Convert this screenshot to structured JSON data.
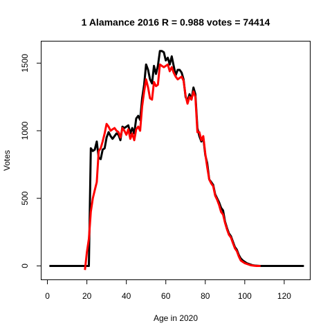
{
  "chart_data": {
    "type": "line",
    "title": "1 Alamance 2016 R = 0.988 votes = 74414",
    "xlabel": "Age in 2020",
    "ylabel": "Votes",
    "xlim": [
      -3,
      133
    ],
    "ylim": [
      -100,
      1660
    ],
    "x_ticks": [
      0,
      20,
      40,
      60,
      80,
      100,
      120
    ],
    "y_ticks": [
      0,
      500,
      1000,
      1500
    ],
    "grid": false,
    "legend": "none",
    "series": [
      {
        "color": "#000000",
        "points": [
          [
            1,
            0
          ],
          [
            19,
            0
          ],
          [
            20,
            0
          ],
          [
            21,
            0
          ],
          [
            22,
            870
          ],
          [
            23,
            850
          ],
          [
            24,
            860
          ],
          [
            25,
            920
          ],
          [
            26,
            800
          ],
          [
            27,
            790
          ],
          [
            28,
            860
          ],
          [
            29,
            870
          ],
          [
            30,
            950
          ],
          [
            31,
            990
          ],
          [
            32,
            960
          ],
          [
            33,
            940
          ],
          [
            34,
            960
          ],
          [
            35,
            980
          ],
          [
            36,
            970
          ],
          [
            37,
            930
          ],
          [
            38,
            1030
          ],
          [
            39,
            1020
          ],
          [
            40,
            1030
          ],
          [
            41,
            1040
          ],
          [
            42,
            980
          ],
          [
            43,
            1020
          ],
          [
            44,
            980
          ],
          [
            45,
            1090
          ],
          [
            46,
            1110
          ],
          [
            47,
            1080
          ],
          [
            48,
            1240
          ],
          [
            49,
            1340
          ],
          [
            50,
            1490
          ],
          [
            51,
            1450
          ],
          [
            52,
            1380
          ],
          [
            53,
            1350
          ],
          [
            54,
            1480
          ],
          [
            55,
            1420
          ],
          [
            56,
            1480
          ],
          [
            57,
            1590
          ],
          [
            58,
            1590
          ],
          [
            59,
            1580
          ],
          [
            60,
            1520
          ],
          [
            61,
            1540
          ],
          [
            62,
            1490
          ],
          [
            63,
            1550
          ],
          [
            64,
            1480
          ],
          [
            65,
            1410
          ],
          [
            66,
            1450
          ],
          [
            67,
            1450
          ],
          [
            68,
            1430
          ],
          [
            69,
            1380
          ],
          [
            70,
            1250
          ],
          [
            71,
            1220
          ],
          [
            72,
            1270
          ],
          [
            73,
            1230
          ],
          [
            74,
            1320
          ],
          [
            75,
            1270
          ],
          [
            76,
            1020
          ],
          [
            77,
            960
          ],
          [
            78,
            920
          ],
          [
            79,
            950
          ],
          [
            80,
            820
          ],
          [
            81,
            760
          ],
          [
            82,
            640
          ],
          [
            83,
            620
          ],
          [
            84,
            600
          ],
          [
            85,
            530
          ],
          [
            86,
            500
          ],
          [
            87,
            470
          ],
          [
            88,
            430
          ],
          [
            89,
            410
          ],
          [
            90,
            330
          ],
          [
            91,
            280
          ],
          [
            92,
            240
          ],
          [
            93,
            220
          ],
          [
            94,
            180
          ],
          [
            95,
            140
          ],
          [
            96,
            120
          ],
          [
            97,
            80
          ],
          [
            98,
            55
          ],
          [
            99,
            40
          ],
          [
            100,
            30
          ],
          [
            101,
            20
          ],
          [
            102,
            15
          ],
          [
            103,
            10
          ],
          [
            104,
            5
          ],
          [
            105,
            3
          ],
          [
            106,
            2
          ],
          [
            108,
            0
          ],
          [
            110,
            0
          ],
          [
            130,
            0
          ]
        ]
      },
      {
        "color": "#ff0000",
        "points": [
          [
            19,
            -30
          ],
          [
            20,
            100
          ],
          [
            21,
            200
          ],
          [
            22,
            400
          ],
          [
            23,
            500
          ],
          [
            24,
            560
          ],
          [
            25,
            620
          ],
          [
            26,
            850
          ],
          [
            27,
            870
          ],
          [
            28,
            920
          ],
          [
            29,
            980
          ],
          [
            30,
            1050
          ],
          [
            31,
            1030
          ],
          [
            32,
            1000
          ],
          [
            33,
            1010
          ],
          [
            34,
            1020
          ],
          [
            35,
            1000
          ],
          [
            36,
            990
          ],
          [
            37,
            950
          ],
          [
            38,
            1020
          ],
          [
            39,
            1000
          ],
          [
            40,
            970
          ],
          [
            41,
            1010
          ],
          [
            42,
            940
          ],
          [
            43,
            980
          ],
          [
            44,
            930
          ],
          [
            45,
            1010
          ],
          [
            46,
            1030
          ],
          [
            47,
            1000
          ],
          [
            48,
            1180
          ],
          [
            49,
            1290
          ],
          [
            50,
            1380
          ],
          [
            51,
            1320
          ],
          [
            52,
            1240
          ],
          [
            53,
            1230
          ],
          [
            54,
            1360
          ],
          [
            55,
            1330
          ],
          [
            56,
            1340
          ],
          [
            57,
            1490
          ],
          [
            58,
            1480
          ],
          [
            59,
            1470
          ],
          [
            60,
            1480
          ],
          [
            61,
            1490
          ],
          [
            62,
            1440
          ],
          [
            63,
            1470
          ],
          [
            64,
            1430
          ],
          [
            65,
            1400
          ],
          [
            66,
            1380
          ],
          [
            67,
            1390
          ],
          [
            68,
            1400
          ],
          [
            69,
            1370
          ],
          [
            70,
            1260
          ],
          [
            71,
            1200
          ],
          [
            72,
            1250
          ],
          [
            73,
            1230
          ],
          [
            74,
            1290
          ],
          [
            75,
            1250
          ],
          [
            76,
            990
          ],
          [
            77,
            990
          ],
          [
            78,
            930
          ],
          [
            79,
            960
          ],
          [
            80,
            830
          ],
          [
            81,
            730
          ],
          [
            82,
            640
          ],
          [
            83,
            610
          ],
          [
            84,
            590
          ],
          [
            85,
            520
          ],
          [
            86,
            490
          ],
          [
            87,
            450
          ],
          [
            88,
            400
          ],
          [
            89,
            380
          ],
          [
            90,
            320
          ],
          [
            91,
            270
          ],
          [
            92,
            230
          ],
          [
            93,
            210
          ],
          [
            94,
            170
          ],
          [
            95,
            130
          ],
          [
            96,
            110
          ],
          [
            97,
            70
          ],
          [
            98,
            40
          ],
          [
            99,
            30
          ],
          [
            100,
            20
          ],
          [
            101,
            15
          ],
          [
            102,
            10
          ],
          [
            103,
            5
          ],
          [
            104,
            3
          ],
          [
            105,
            1
          ],
          [
            106,
            0
          ],
          [
            108,
            0
          ]
        ]
      }
    ]
  }
}
